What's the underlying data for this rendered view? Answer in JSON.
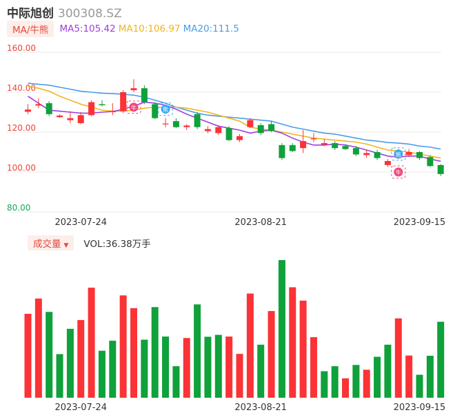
{
  "header": {
    "name": "中际旭创",
    "code": "300308.SZ"
  },
  "ma_legend": {
    "toggle_label": "MA/牛熊",
    "items": [
      {
        "label": "MA5:105.42",
        "color": "#9b3fe0"
      },
      {
        "label": "MA10:106.97",
        "color": "#f2b51c"
      },
      {
        "label": "MA20:111.5",
        "color": "#4a9ce8"
      }
    ]
  },
  "volume_legend": {
    "toggle_label": "成交量",
    "value_label": "VOL:36.38万手"
  },
  "colors": {
    "up": "#fb3336",
    "down": "#0fa13a",
    "axis_label": "#e8473a",
    "axis_label_low": "#1aa55d",
    "grid": "#ebebeb"
  },
  "chart_data": [
    {
      "type": "candlestick",
      "y_ticks": [
        "160.00",
        "140.00",
        "120.00",
        "100.00",
        "80.00"
      ],
      "ylim": [
        80,
        160
      ],
      "x_ticks": [
        {
          "index": 5,
          "label": "2023-07-24"
        },
        {
          "index": 22,
          "label": "2023-08-21"
        },
        {
          "index": 37,
          "label": "2023-09-15"
        }
      ],
      "candles": [
        {
          "o": 130.2,
          "c": 131.3,
          "h": 134.0,
          "l": 129.0
        },
        {
          "o": 133.3,
          "c": 134.0,
          "h": 137.0,
          "l": 132.0
        },
        {
          "o": 134.5,
          "c": 129.0,
          "h": 135.5,
          "l": 128.0
        },
        {
          "o": 127.5,
          "c": 128.3,
          "h": 129.0,
          "l": 127.0
        },
        {
          "o": 126.0,
          "c": 127.0,
          "h": 130.5,
          "l": 124.5
        },
        {
          "o": 124.5,
          "c": 128.5,
          "h": 130.0,
          "l": 124.0
        },
        {
          "o": 128.5,
          "c": 135.0,
          "h": 136.0,
          "l": 128.0
        },
        {
          "o": 134.0,
          "c": 133.5,
          "h": 136.0,
          "l": 133.0
        },
        {
          "o": 130.0,
          "c": 130.5,
          "h": 134.5,
          "l": 128.5
        },
        {
          "o": 130.5,
          "c": 140.0,
          "h": 141.0,
          "l": 129.5
        },
        {
          "o": 141.0,
          "c": 142.0,
          "h": 146.5,
          "l": 140.0
        },
        {
          "o": 142.0,
          "c": 135.0,
          "h": 143.5,
          "l": 134.0
        },
        {
          "o": 134.0,
          "c": 127.0,
          "h": 135.0,
          "l": 126.5
        },
        {
          "o": 124.0,
          "c": 124.3,
          "h": 127.0,
          "l": 122.5
        },
        {
          "o": 125.5,
          "c": 122.5,
          "h": 127.0,
          "l": 122.0
        },
        {
          "o": 122.5,
          "c": 123.3,
          "h": 124.0,
          "l": 121.0
        },
        {
          "o": 129.0,
          "c": 122.5,
          "h": 130.0,
          "l": 121.5
        },
        {
          "o": 120.5,
          "c": 121.5,
          "h": 123.0,
          "l": 119.5
        },
        {
          "o": 119.5,
          "c": 122.5,
          "h": 123.5,
          "l": 118.5
        },
        {
          "o": 122.0,
          "c": 116.0,
          "h": 123.0,
          "l": 115.5
        },
        {
          "o": 116.0,
          "c": 118.0,
          "h": 119.0,
          "l": 115.0
        },
        {
          "o": 122.5,
          "c": 126.0,
          "h": 127.0,
          "l": 122.0
        },
        {
          "o": 123.5,
          "c": 119.5,
          "h": 124.5,
          "l": 118.5
        },
        {
          "o": 124.0,
          "c": 120.5,
          "h": 125.5,
          "l": 120.0
        },
        {
          "o": 113.5,
          "c": 107.0,
          "h": 114.5,
          "l": 106.0
        },
        {
          "o": 113.5,
          "c": 110.5,
          "h": 114.5,
          "l": 110.0
        },
        {
          "o": 112.0,
          "c": 115.5,
          "h": 121.0,
          "l": 109.5
        },
        {
          "o": 116.5,
          "c": 116.8,
          "h": 119.5,
          "l": 115.0
        },
        {
          "o": 113.8,
          "c": 114.5,
          "h": 116.5,
          "l": 113.0
        },
        {
          "o": 114.5,
          "c": 112.0,
          "h": 115.5,
          "l": 111.0
        },
        {
          "o": 113.0,
          "c": 111.5,
          "h": 114.0,
          "l": 111.0
        },
        {
          "o": 112.0,
          "c": 108.8,
          "h": 113.0,
          "l": 108.0
        },
        {
          "o": 108.5,
          "c": 109.5,
          "h": 111.0,
          "l": 107.0
        },
        {
          "o": 110.0,
          "c": 107.0,
          "h": 111.0,
          "l": 106.0
        },
        {
          "o": 103.5,
          "c": 105.5,
          "h": 106.5,
          "l": 102.5
        },
        {
          "o": 107.0,
          "c": 109.5,
          "h": 111.5,
          "l": 106.5
        },
        {
          "o": 108.5,
          "c": 110.0,
          "h": 111.5,
          "l": 107.5
        },
        {
          "o": 110.0,
          "c": 107.0,
          "h": 110.5,
          "l": 106.0
        },
        {
          "o": 107.5,
          "c": 103.0,
          "h": 108.5,
          "l": 102.5
        },
        {
          "o": 103.5,
          "c": 99.0,
          "h": 104.0,
          "l": 98.0
        }
      ],
      "ma5": [
        138.0,
        134.5,
        131.0,
        130.5,
        130.0,
        129.5,
        129.5,
        130.0,
        130.3,
        131.5,
        133.0,
        135.0,
        134.5,
        133.5,
        131.5,
        129.0,
        127.0,
        125.0,
        123.0,
        122.0,
        121.0,
        119.5,
        120.5,
        121.0,
        119.5,
        117.0,
        115.0,
        113.5,
        113.5,
        114.0,
        113.5,
        112.5,
        111.0,
        109.5,
        108.0,
        107.5,
        108.0,
        108.0,
        106.5,
        105.4
      ],
      "ma10": [
        143.0,
        142.0,
        140.5,
        138.0,
        136.0,
        134.0,
        132.5,
        131.0,
        130.5,
        130.5,
        131.0,
        132.0,
        132.5,
        132.5,
        132.5,
        132.0,
        131.0,
        130.0,
        128.5,
        127.0,
        125.5,
        122.5,
        121.5,
        121.0,
        120.0,
        119.0,
        118.0,
        117.0,
        116.5,
        116.0,
        115.5,
        115.0,
        114.0,
        112.5,
        111.0,
        110.5,
        110.0,
        109.0,
        108.0,
        107.0
      ],
      "ma20": [
        144.5,
        144.0,
        143.5,
        142.5,
        141.5,
        140.5,
        140.0,
        139.5,
        139.3,
        139.0,
        138.5,
        137.5,
        136.0,
        134.5,
        132.5,
        131.0,
        129.5,
        128.5,
        128.0,
        127.5,
        127.0,
        126.5,
        126.0,
        125.5,
        124.0,
        122.5,
        121.5,
        120.5,
        119.5,
        119.0,
        118.0,
        117.0,
        116.0,
        115.5,
        114.8,
        114.5,
        114.0,
        113.0,
        112.5,
        111.5
      ],
      "markers": [
        {
          "index": 10,
          "text": "牛",
          "value": 132.5,
          "kind": "bull"
        },
        {
          "index": 13,
          "text": "熊",
          "value": 131.5,
          "kind": "bear"
        },
        {
          "index": 35,
          "text": "熊",
          "value": 109.0,
          "kind": "bear"
        },
        {
          "index": 35,
          "text": "牛",
          "value": 100.0,
          "kind": "bull"
        }
      ]
    },
    {
      "type": "bar",
      "unit": "万手",
      "last_value": 36.38,
      "values": [
        40.2,
        47.5,
        41.1,
        20.9,
        33.0,
        37.2,
        52.7,
        22.5,
        27.3,
        49.0,
        42.9,
        27.8,
        43.4,
        29.3,
        15.1,
        28.6,
        44.7,
        29.2,
        30.1,
        29.3,
        21.0,
        49.9,
        25.4,
        41.5,
        65.9,
        52.9,
        46.5,
        29.0,
        12.7,
        15.1,
        9.3,
        15.7,
        13.4,
        19.6,
        25.4,
        38.0,
        20.2,
        11.0,
        20.1,
        36.38
      ],
      "up": [
        true,
        true,
        false,
        false,
        false,
        true,
        true,
        false,
        false,
        true,
        true,
        false,
        false,
        false,
        false,
        true,
        false,
        false,
        false,
        true,
        true,
        true,
        false,
        true,
        false,
        true,
        true,
        true,
        false,
        false,
        true,
        false,
        true,
        false,
        false,
        true,
        true,
        false,
        false,
        false
      ]
    }
  ]
}
